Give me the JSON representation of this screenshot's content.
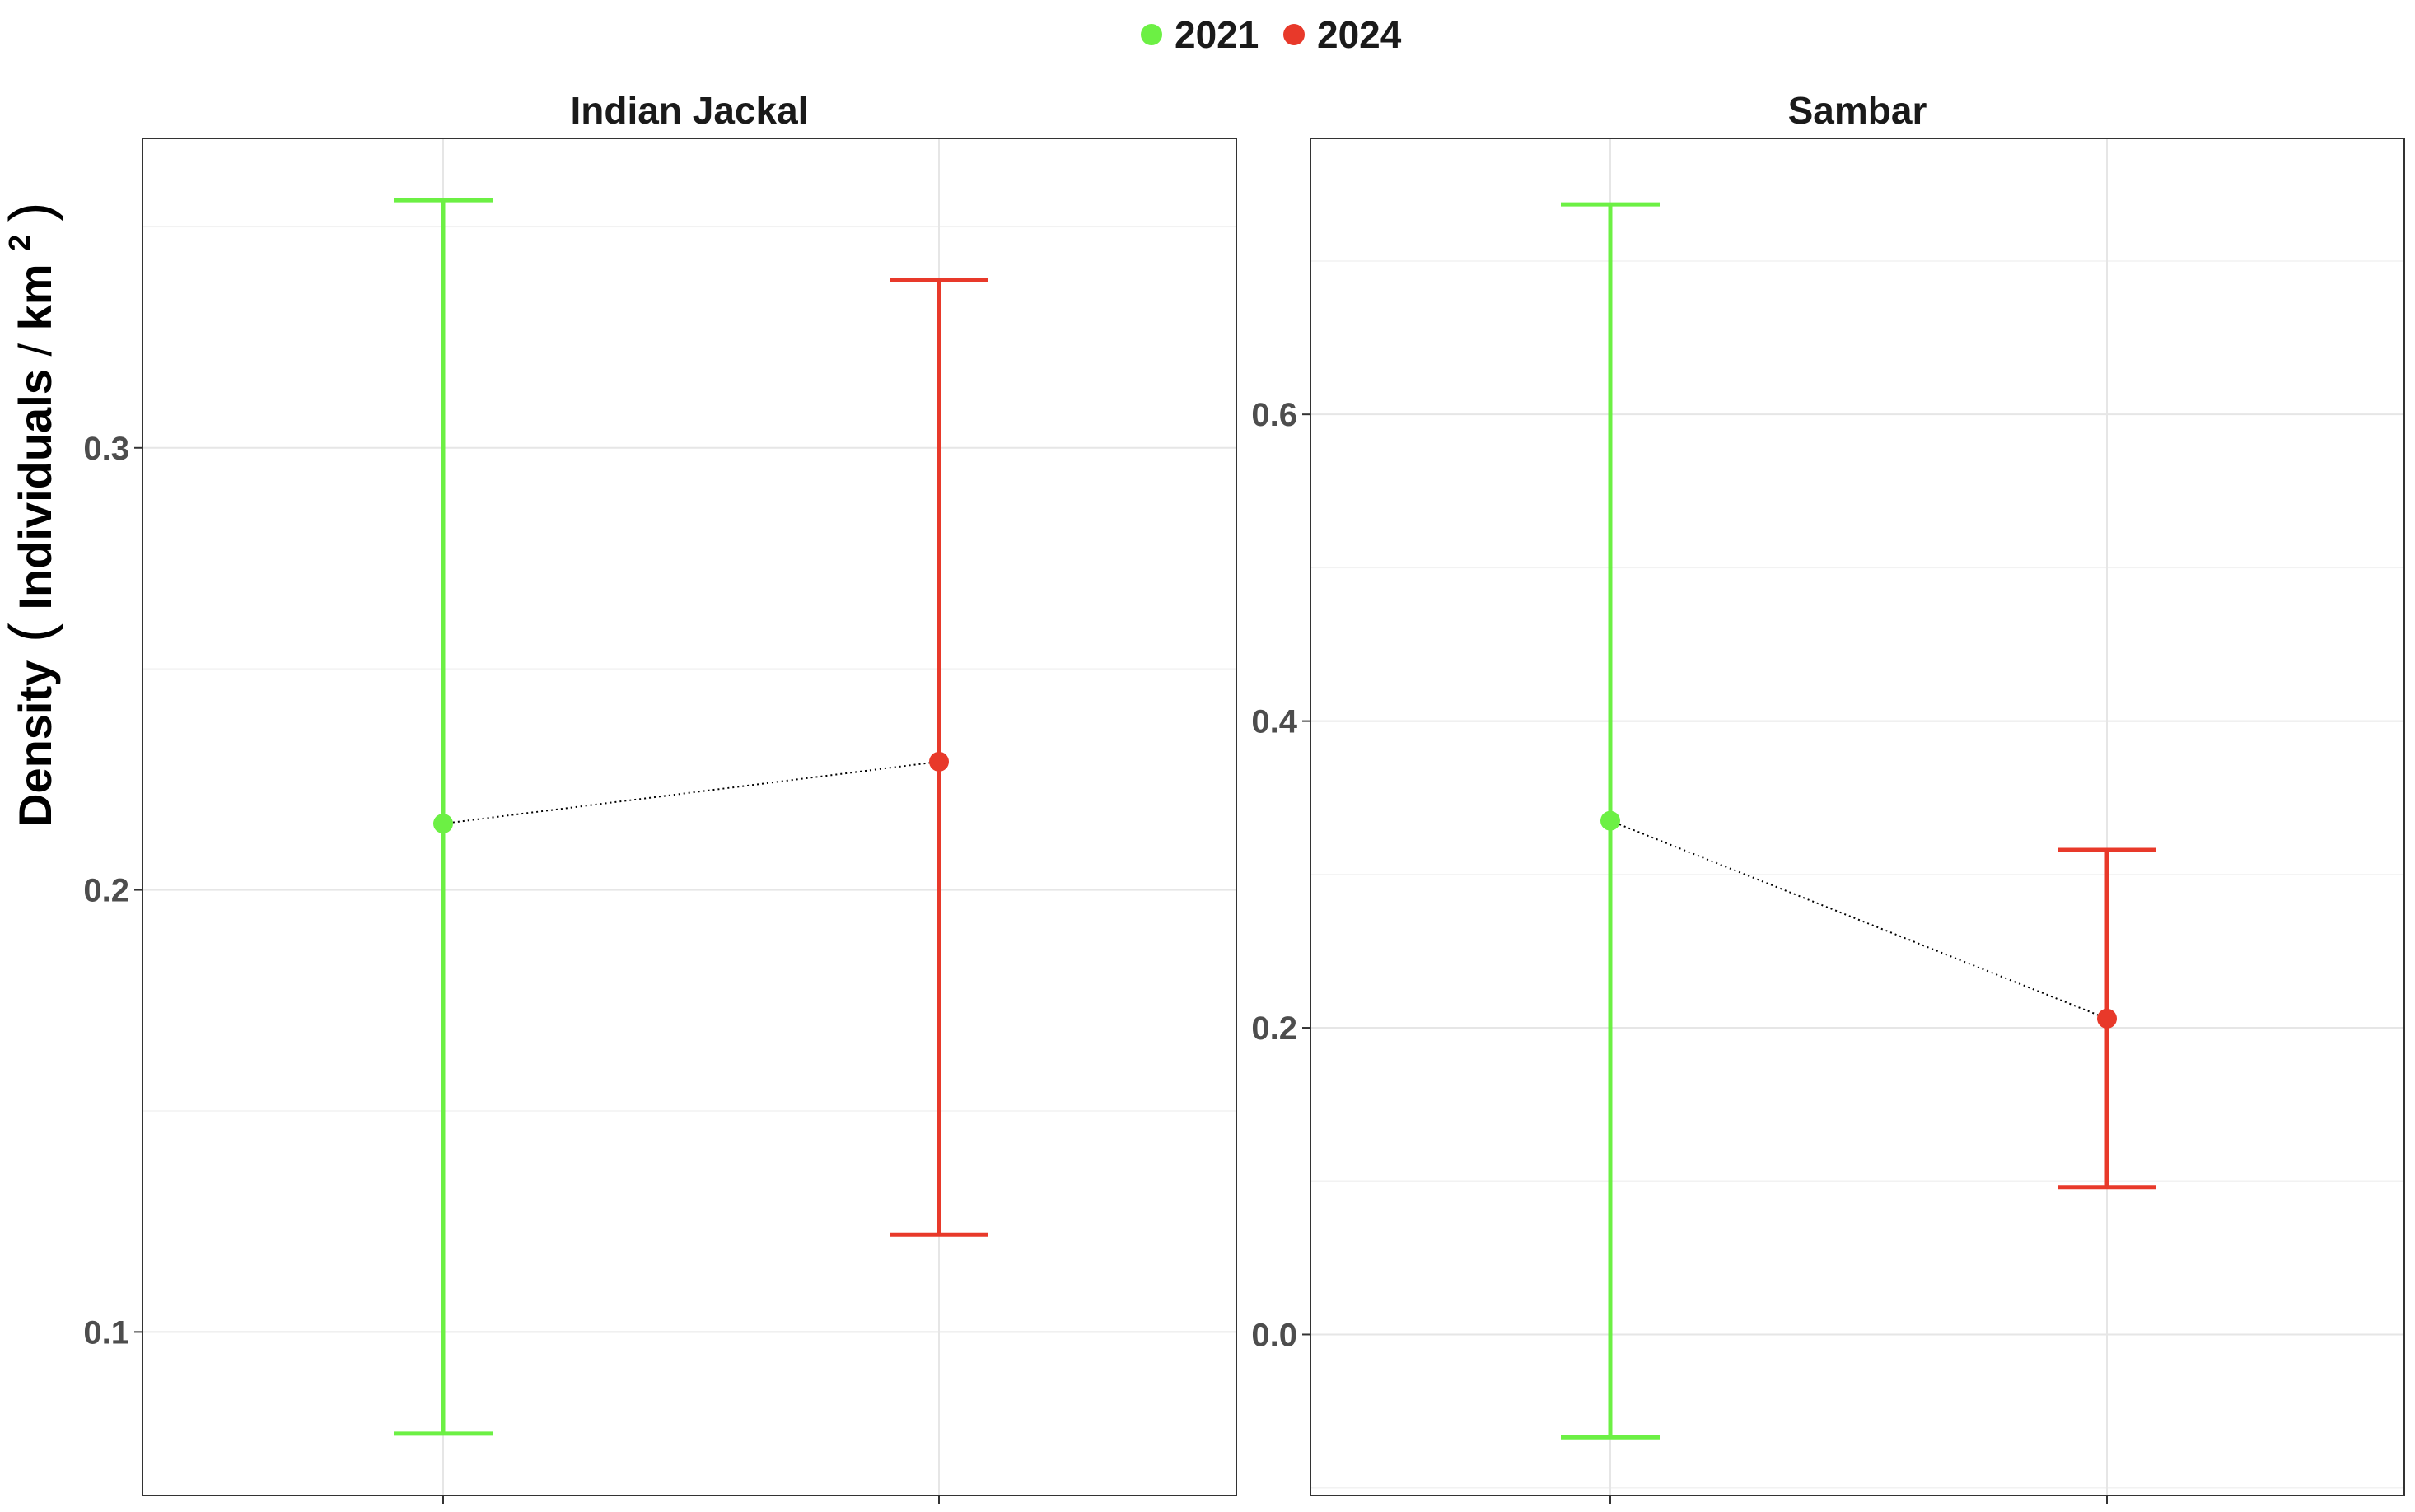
{
  "chart_data": {
    "type": "scatter",
    "ylabel": "Density (Individuals/km2)",
    "ylabel_parts": {
      "main": "Density",
      "inner": "Individuals",
      "unit": "km",
      "exponent": "2"
    },
    "legend": {
      "position": "top",
      "entries": [
        {
          "label": "2021",
          "color": "#6CF044"
        },
        {
          "label": "2024",
          "color": "#E8392A"
        }
      ]
    },
    "grid": true,
    "connector": {
      "style": "dotted",
      "color": "#000000"
    },
    "panels": [
      {
        "title": "Indian Jackal",
        "ylim": [
          0.063,
          0.37
        ],
        "yticks": [
          0.1,
          0.2,
          0.3
        ],
        "ytick_labels": [
          "0.1",
          "0.2",
          "0.3"
        ],
        "points": [
          {
            "series": "2021",
            "estimate": 0.215,
            "lower": 0.077,
            "upper": 0.356
          },
          {
            "series": "2024",
            "estimate": 0.229,
            "lower": 0.122,
            "upper": 0.338
          }
        ]
      },
      {
        "title": "Sambar",
        "ylim": [
          -0.105,
          0.78
        ],
        "yticks": [
          0.0,
          0.2,
          0.4,
          0.6
        ],
        "ytick_labels": [
          "0.0",
          "0.2",
          "0.4",
          "0.6"
        ],
        "points": [
          {
            "series": "2021",
            "estimate": 0.335,
            "lower": -0.067,
            "upper": 0.737
          },
          {
            "series": "2024",
            "estimate": 0.206,
            "lower": 0.096,
            "upper": 0.316
          }
        ]
      }
    ]
  }
}
